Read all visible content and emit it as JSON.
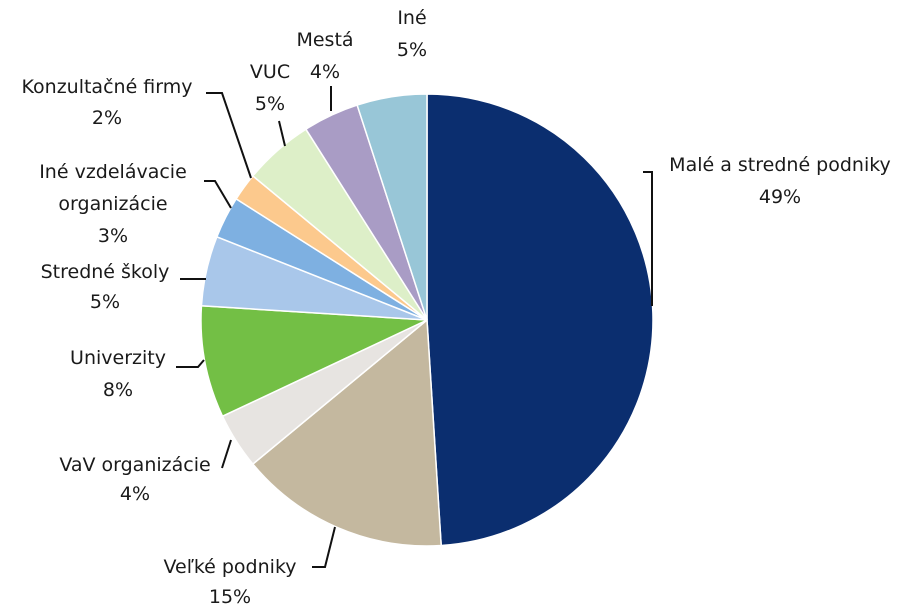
{
  "chart_data": {
    "type": "pie",
    "categories": [
      "Malé a stredné podniky",
      "Veľké podniky",
      "VaV organizácie",
      "Univerzity",
      "Stredné školy",
      "Iné vzdelávacie organizácie",
      "Konzultačné firmy",
      "VUC",
      "Mestá",
      "Iné"
    ],
    "values": [
      49,
      15,
      4,
      8,
      5,
      3,
      2,
      5,
      4,
      5
    ],
    "value_labels": [
      "49%",
      "15%",
      "4%",
      "8%",
      "5%",
      "3%",
      "2%",
      "5%",
      "4%",
      "5%"
    ],
    "colors": [
      "#0b2e6f",
      "#c4b89f",
      "#e7e4e1",
      "#73bf45",
      "#a9c7ea",
      "#7eb0e1",
      "#fcc98d",
      "#ddefc8",
      "#a99cc5",
      "#98c6d7"
    ]
  }
}
